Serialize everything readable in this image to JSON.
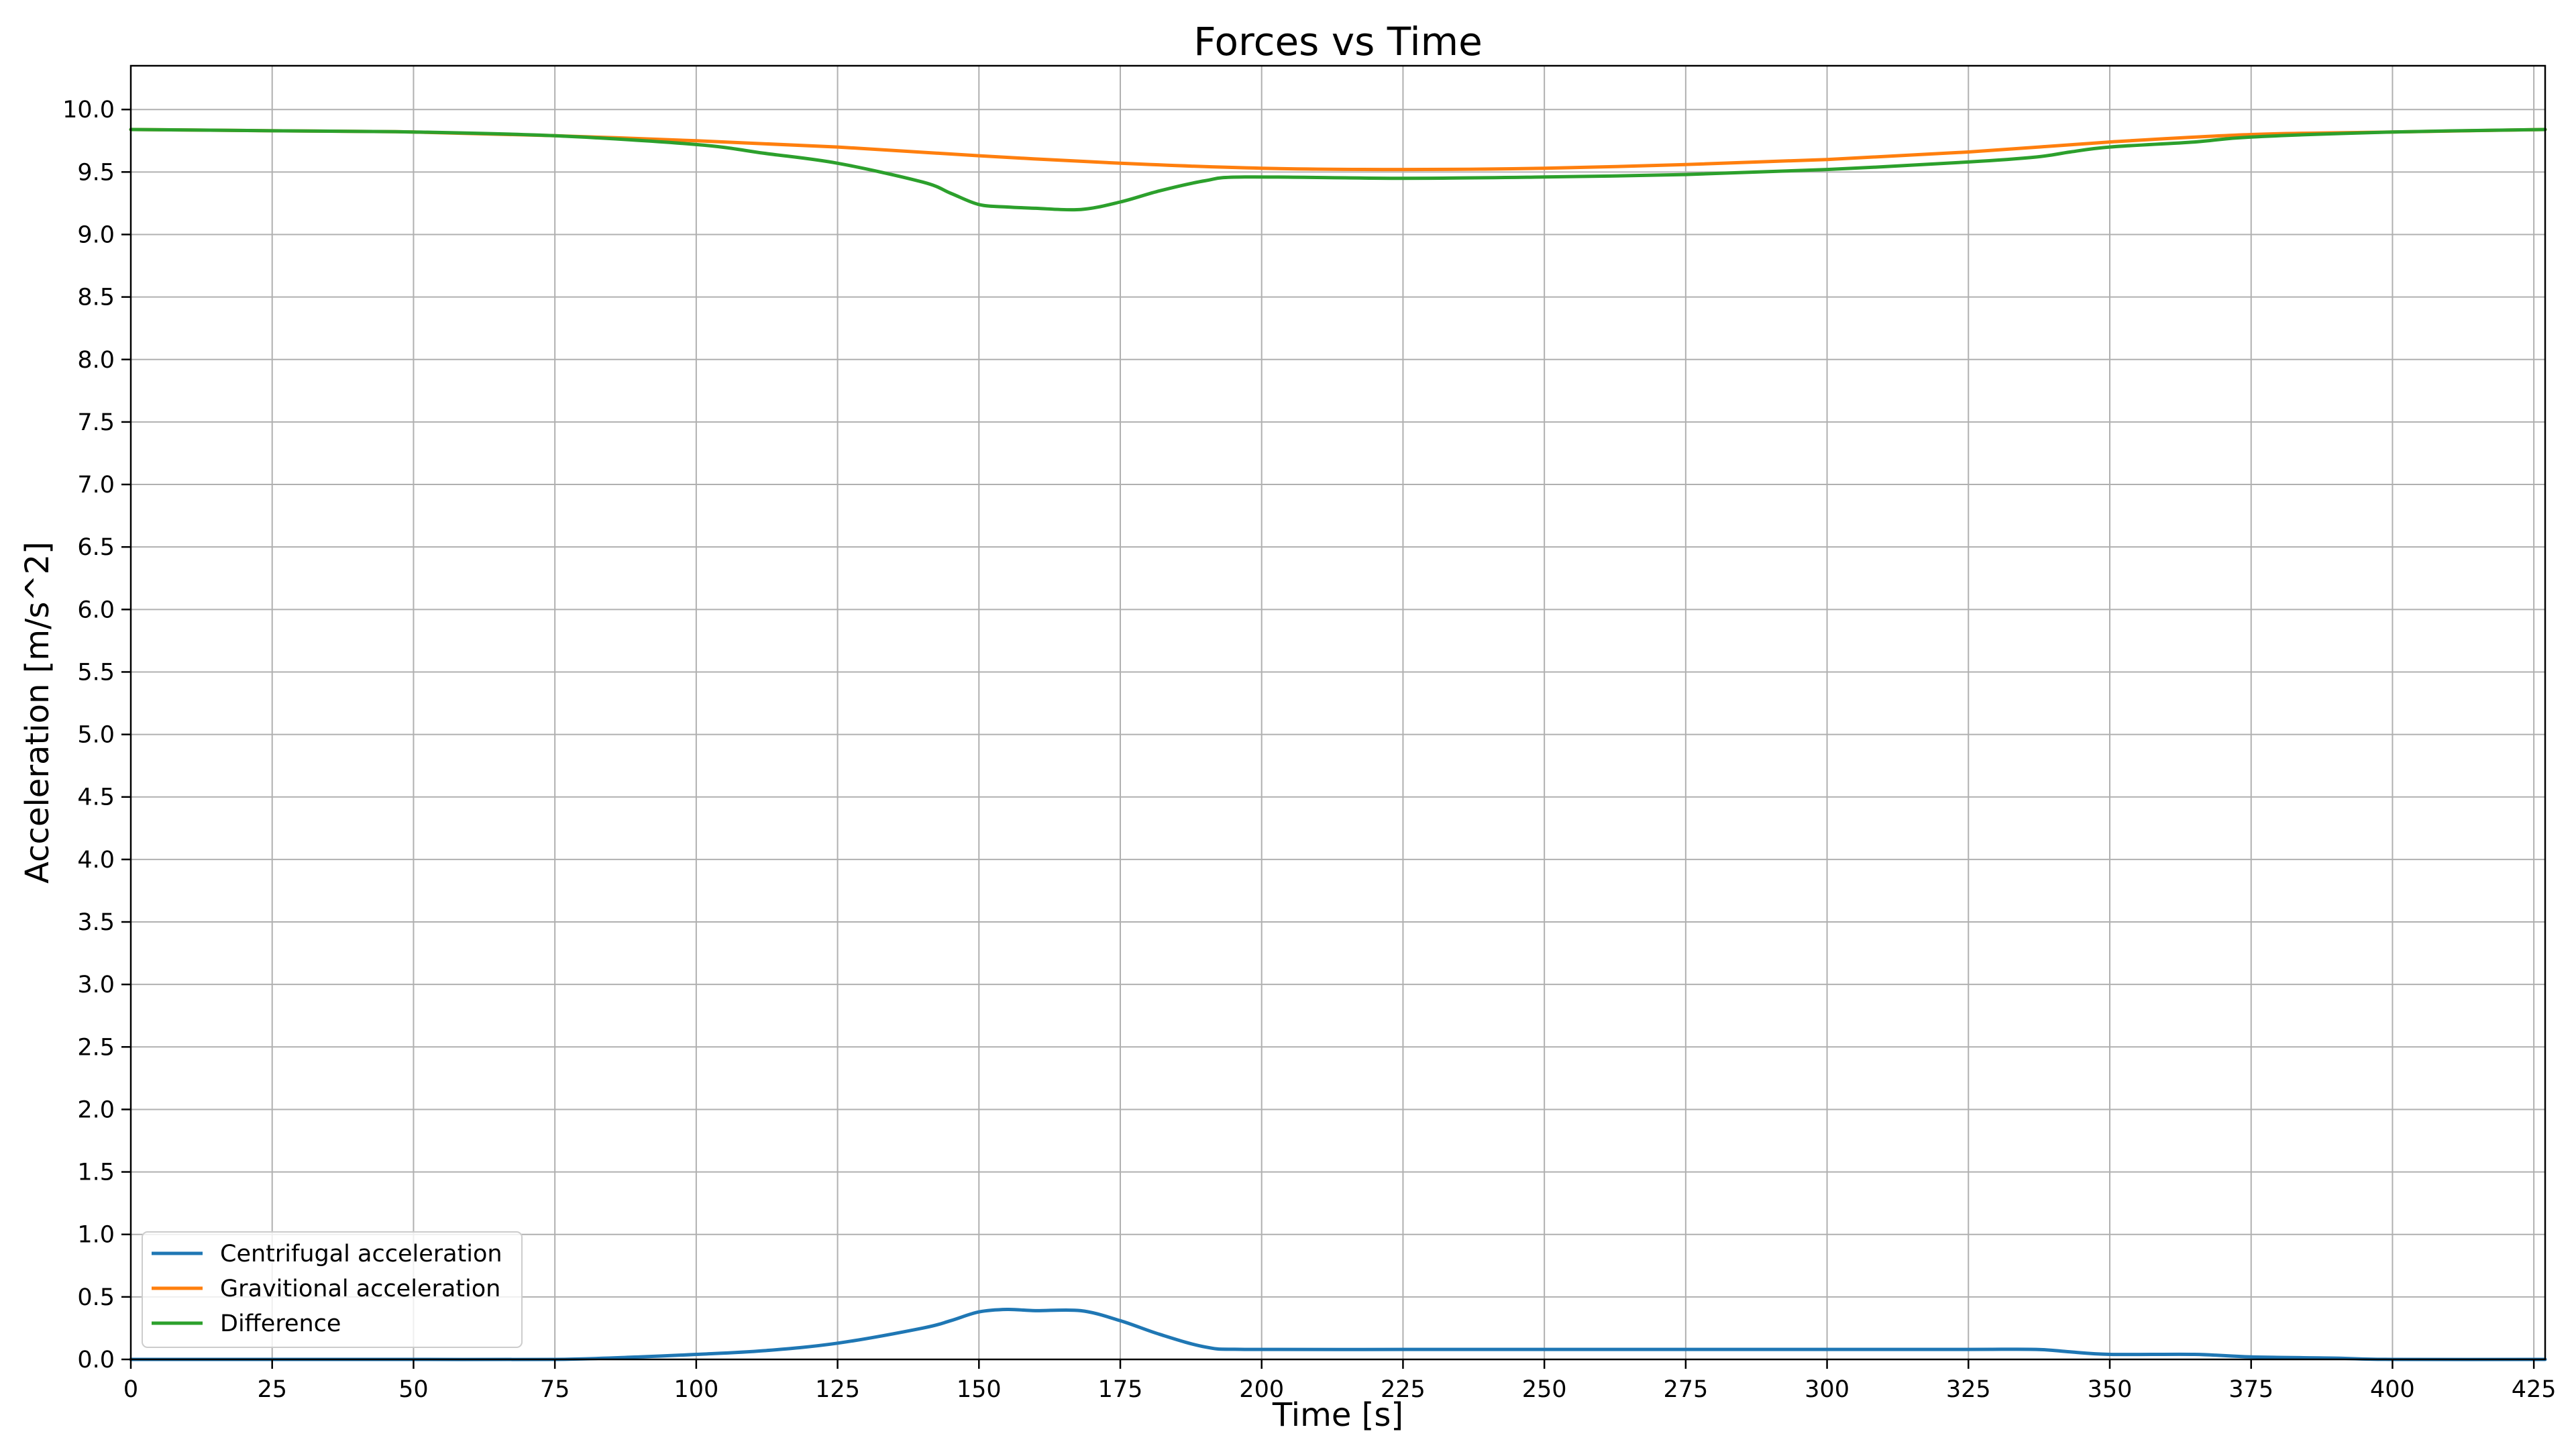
{
  "chart_data": {
    "type": "line",
    "title": "Forces vs Time",
    "xlabel": "Time [s]",
    "ylabel": "Acceleration [m/s^2]",
    "xlim": [
      0,
      427
    ],
    "ylim": [
      0,
      10.35
    ],
    "xticks": [
      0,
      25,
      50,
      75,
      100,
      125,
      150,
      175,
      200,
      225,
      250,
      275,
      300,
      325,
      350,
      375,
      400,
      425
    ],
    "xtick_labels": [
      "0",
      "25",
      "50",
      "75",
      "100",
      "125",
      "150",
      "175",
      "200",
      "225",
      "250",
      "275",
      "300",
      "325",
      "350",
      "375",
      "400",
      "425"
    ],
    "yticks": [
      0,
      0.5,
      1,
      1.5,
      2,
      2.5,
      3,
      3.5,
      4,
      4.5,
      5,
      5.5,
      6,
      6.5,
      7,
      7.5,
      8,
      8.5,
      9,
      9.5,
      10
    ],
    "ytick_labels": [
      "0.0",
      "0.5",
      "1.0",
      "1.5",
      "2.0",
      "2.5",
      "3.0",
      "3.5",
      "4.0",
      "4.5",
      "5.0",
      "5.5",
      "6.0",
      "6.5",
      "7.0",
      "7.5",
      "8.0",
      "8.5",
      "9.0",
      "9.5",
      "10.0"
    ],
    "grid": true,
    "legend_position": "lower-left",
    "series": [
      {
        "name": "Centrifugal acceleration",
        "color": "#1f77b4",
        "x": [
          0,
          25,
          50,
          75,
          90,
          100,
          112,
          125,
          140,
          145,
          150,
          155,
          160,
          168,
          175,
          182,
          190,
          197,
          225,
          250,
          275,
          300,
          325,
          337,
          343,
          350,
          365,
          375,
          390,
          400,
          427
        ],
        "y": [
          0.0,
          0.0,
          0.0,
          0.0,
          0.02,
          0.04,
          0.07,
          0.13,
          0.25,
          0.31,
          0.38,
          0.4,
          0.39,
          0.39,
          0.31,
          0.2,
          0.1,
          0.08,
          0.08,
          0.08,
          0.08,
          0.08,
          0.08,
          0.08,
          0.06,
          0.04,
          0.04,
          0.02,
          0.01,
          0.0,
          0.0
        ]
      },
      {
        "name": "Gravitional acceleration",
        "color": "#ff7f0e",
        "x": [
          0,
          25,
          50,
          75,
          100,
          125,
          150,
          175,
          200,
          225,
          250,
          275,
          300,
          325,
          350,
          375,
          400,
          427
        ],
        "y": [
          9.84,
          9.83,
          9.82,
          9.79,
          9.75,
          9.7,
          9.63,
          9.57,
          9.53,
          9.52,
          9.53,
          9.56,
          9.6,
          9.66,
          9.74,
          9.8,
          9.82,
          9.84
        ]
      },
      {
        "name": "Difference",
        "color": "#2ca02c",
        "x": [
          0,
          25,
          50,
          75,
          100,
          112,
          125,
          140,
          145,
          150,
          155,
          160,
          168,
          175,
          182,
          190,
          197,
          225,
          250,
          275,
          300,
          325,
          337,
          343,
          350,
          365,
          375,
          400,
          427
        ],
        "y": [
          9.84,
          9.83,
          9.82,
          9.79,
          9.72,
          9.65,
          9.57,
          9.42,
          9.33,
          9.24,
          9.22,
          9.21,
          9.2,
          9.26,
          9.35,
          9.43,
          9.46,
          9.45,
          9.46,
          9.48,
          9.52,
          9.58,
          9.62,
          9.66,
          9.7,
          9.74,
          9.78,
          9.82,
          9.84
        ]
      }
    ]
  }
}
